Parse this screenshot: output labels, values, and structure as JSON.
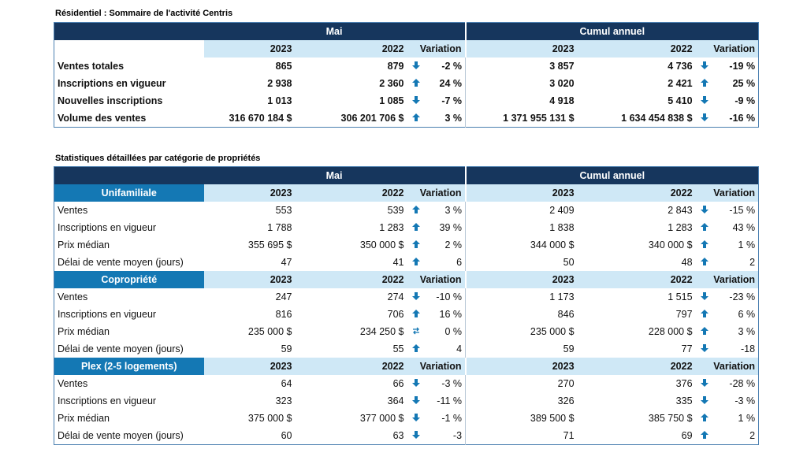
{
  "summary": {
    "title": "Résidentiel : Sommaire de l'activité Centris",
    "period_mai": "Mai",
    "period_cumul": "Cumul annuel",
    "y2023": "2023",
    "y2022": "2022",
    "variation": "Variation",
    "rows": [
      {
        "label": "Ventes totales",
        "m23": "865",
        "m22": "879",
        "mdir": "down",
        "mvar": "-2 %",
        "c23": "3 857",
        "c22": "4 736",
        "cdir": "down",
        "cvar": "-19 %"
      },
      {
        "label": "Inscriptions en vigueur",
        "m23": "2 938",
        "m22": "2 360",
        "mdir": "up",
        "mvar": "24 %",
        "c23": "3 020",
        "c22": "2 421",
        "cdir": "up",
        "cvar": "25 %"
      },
      {
        "label": "Nouvelles inscriptions",
        "m23": "1 013",
        "m22": "1 085",
        "mdir": "down",
        "mvar": "-7 %",
        "c23": "4 918",
        "c22": "5 410",
        "cdir": "down",
        "cvar": "-9 %"
      },
      {
        "label": "Volume des ventes",
        "m23": "316 670 184  $",
        "m22": "306 201 706  $",
        "mdir": "up",
        "mvar": "3 %",
        "c23": "1 371 955 131  $",
        "c22": "1 634 454 838  $",
        "cdir": "down",
        "cvar": "-16 %"
      }
    ]
  },
  "detail": {
    "title": "Statistiques détaillées par catégorie de propriétés",
    "period_mai": "Mai",
    "period_cumul": "Cumul annuel",
    "categories": [
      {
        "name": "Unifamiliale",
        "y2023": "2023",
        "y2022": "2022",
        "variation": "Variation",
        "rows": [
          {
            "label": "Ventes",
            "m23": "553",
            "m22": "539",
            "mdir": "up",
            "mvar": "3 %",
            "c23": "2 409",
            "c22": "2 843",
            "cdir": "down",
            "cvar": "-15 %"
          },
          {
            "label": "Inscriptions en vigueur",
            "m23": "1 788",
            "m22": "1 283",
            "mdir": "up",
            "mvar": "39 %",
            "c23": "1 838",
            "c22": "1 283",
            "cdir": "up",
            "cvar": "43 %"
          },
          {
            "label": "Prix médian",
            "m23": "355 695 $",
            "m22": "350 000 $",
            "mdir": "up",
            "mvar": "2 %",
            "c23": "344 000 $",
            "c22": "340 000 $",
            "cdir": "up",
            "cvar": "1 %"
          },
          {
            "label": "Délai de vente moyen (jours)",
            "m23": "47",
            "m22": "41",
            "mdir": "up",
            "mvar": "6",
            "c23": "50",
            "c22": "48",
            "cdir": "up",
            "cvar": "2"
          }
        ]
      },
      {
        "name": "Copropriété",
        "y2023": "2023",
        "y2022": "2022",
        "variation": "Variation",
        "rows": [
          {
            "label": "Ventes",
            "m23": "247",
            "m22": "274",
            "mdir": "down",
            "mvar": "-10 %",
            "c23": "1 173",
            "c22": "1 515",
            "cdir": "down",
            "cvar": "-23 %"
          },
          {
            "label": "Inscriptions en vigueur",
            "m23": "816",
            "m22": "706",
            "mdir": "up",
            "mvar": "16 %",
            "c23": "846",
            "c22": "797",
            "cdir": "up",
            "cvar": "6 %"
          },
          {
            "label": "Prix médian",
            "m23": "235 000 $",
            "m22": "234 250 $",
            "mdir": "flat",
            "mvar": "0 %",
            "c23": "235 000 $",
            "c22": "228 000 $",
            "cdir": "up",
            "cvar": "3 %"
          },
          {
            "label": "Délai de vente moyen (jours)",
            "m23": "59",
            "m22": "55",
            "mdir": "up",
            "mvar": "4",
            "c23": "59",
            "c22": "77",
            "cdir": "down",
            "cvar": "-18"
          }
        ]
      },
      {
        "name": "Plex (2-5 logements)",
        "y2023": "2023",
        "y2022": "2022",
        "variation": "Variation",
        "rows": [
          {
            "label": "Ventes",
            "m23": "64",
            "m22": "66",
            "mdir": "down",
            "mvar": "-3 %",
            "c23": "270",
            "c22": "376",
            "cdir": "down",
            "cvar": "-28 %"
          },
          {
            "label": "Inscriptions en vigueur",
            "m23": "323",
            "m22": "364",
            "mdir": "down",
            "mvar": "-11 %",
            "c23": "326",
            "c22": "335",
            "cdir": "down",
            "cvar": "-3 %"
          },
          {
            "label": "Prix médian",
            "m23": "375 000 $",
            "m22": "377 000 $",
            "mdir": "down",
            "mvar": "-1 %",
            "c23": "389 500 $",
            "c22": "385 750 $",
            "cdir": "up",
            "cvar": "1 %"
          },
          {
            "label": "Délai de vente moyen (jours)",
            "m23": "60",
            "m22": "63",
            "mdir": "down",
            "mvar": "-3",
            "c23": "71",
            "c22": "69",
            "cdir": "up",
            "cvar": "2"
          }
        ]
      }
    ]
  },
  "colors": {
    "arrow": "#1478b4",
    "header_dark": "#16365d",
    "header_light": "#cfe8f6",
    "category": "#1478b4"
  }
}
